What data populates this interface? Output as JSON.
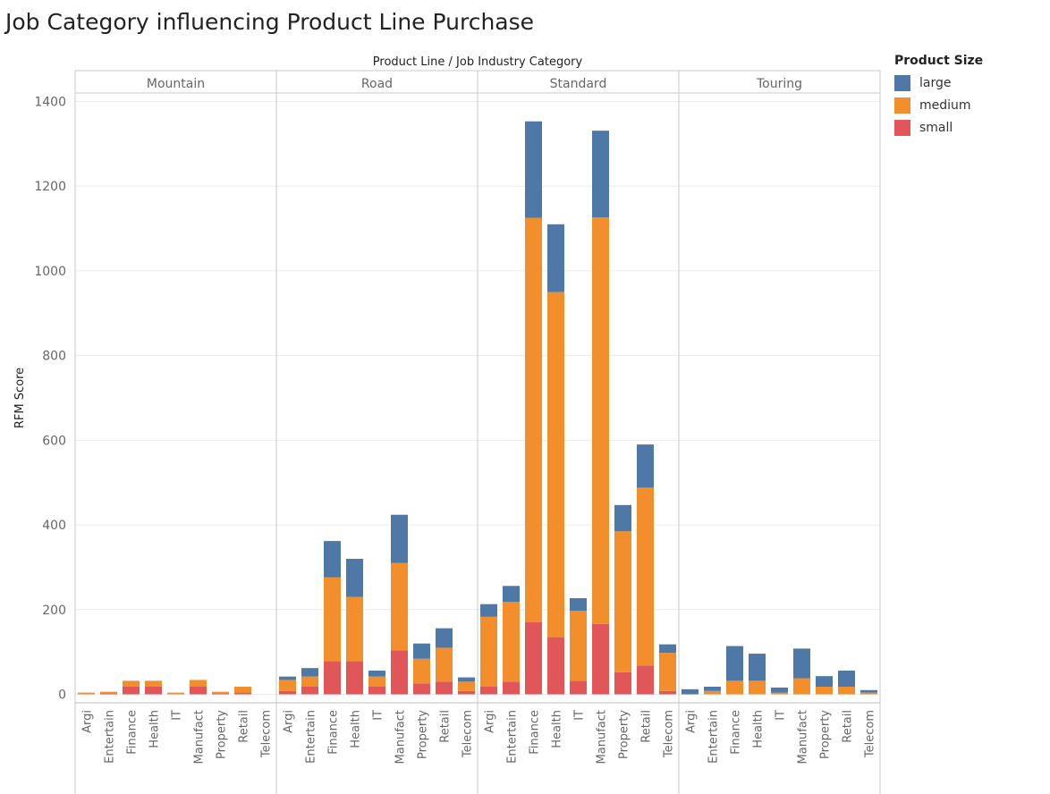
{
  "chart_data": {
    "type": "bar",
    "stacked": true,
    "title": "Job Category influencing Product Line Purchase",
    "column_header": "Product Line  /  Job Industry Category",
    "ylabel": "RFM Score",
    "ylim": [
      -20,
      1420
    ],
    "yticks": [
      0,
      200,
      400,
      600,
      800,
      1000,
      1200,
      1400
    ],
    "grid": true,
    "legend_title": "Product Size",
    "legend_position": "top-right",
    "categories": [
      "Argi",
      "Entertain",
      "Finance",
      "Health",
      "IT",
      "Manufact",
      "Property",
      "Retail",
      "Telecom"
    ],
    "series_names": [
      "large",
      "medium",
      "small"
    ],
    "colors": {
      "large": "#4e79a7",
      "medium": "#f28e2b",
      "small": "#e15759"
    },
    "panels": [
      {
        "name": "Mountain",
        "small": [
          0,
          2,
          18,
          18,
          0,
          18,
          2,
          4,
          0
        ],
        "medium": [
          4,
          4,
          14,
          14,
          4,
          16,
          4,
          14,
          0
        ],
        "large": [
          0,
          0,
          0,
          0,
          0,
          0,
          0,
          0,
          0
        ]
      },
      {
        "name": "Road",
        "small": [
          8,
          18,
          78,
          78,
          18,
          104,
          26,
          30,
          8
        ],
        "medium": [
          26,
          24,
          198,
          152,
          24,
          206,
          58,
          80,
          22
        ],
        "large": [
          8,
          20,
          86,
          90,
          14,
          114,
          36,
          46,
          10
        ]
      },
      {
        "name": "Standard",
        "small": [
          18,
          30,
          170,
          135,
          32,
          166,
          52,
          68,
          8
        ],
        "medium": [
          165,
          188,
          955,
          815,
          165,
          960,
          333,
          420,
          90
        ],
        "large": [
          30,
          38,
          228,
          160,
          30,
          205,
          62,
          102,
          20
        ]
      },
      {
        "name": "Touring",
        "small": [
          0,
          0,
          0,
          0,
          0,
          0,
          0,
          0,
          0
        ],
        "medium": [
          0,
          8,
          32,
          32,
          4,
          38,
          18,
          18,
          4
        ],
        "large": [
          12,
          10,
          82,
          64,
          12,
          70,
          25,
          38,
          6
        ]
      }
    ]
  }
}
